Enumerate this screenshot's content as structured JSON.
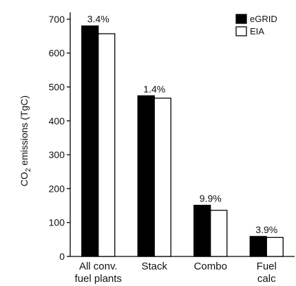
{
  "chart_data": {
    "type": "bar",
    "categories": [
      [
        "All conv.",
        "fuel plants"
      ],
      [
        "Stack"
      ],
      [
        "Combo"
      ],
      [
        "Fuel",
        "calc"
      ]
    ],
    "series": [
      {
        "name": "eGRID",
        "values": [
          680,
          474,
          151,
          59
        ],
        "color": "#000000"
      },
      {
        "name": "EIA",
        "values": [
          657,
          467,
          136,
          56
        ],
        "color": "#ffffff"
      }
    ],
    "annotations": [
      "3.4%",
      "1.4%",
      "9.9%",
      "3.9%"
    ],
    "ylabel_main": "CO",
    "ylabel_sub": "2",
    "ylabel_rest": " emissions (TgC)",
    "ylim": [
      0,
      720
    ],
    "yticks": [
      0,
      100,
      200,
      300,
      400,
      500,
      600,
      700
    ],
    "legend_position": "top-right",
    "grid": false
  }
}
